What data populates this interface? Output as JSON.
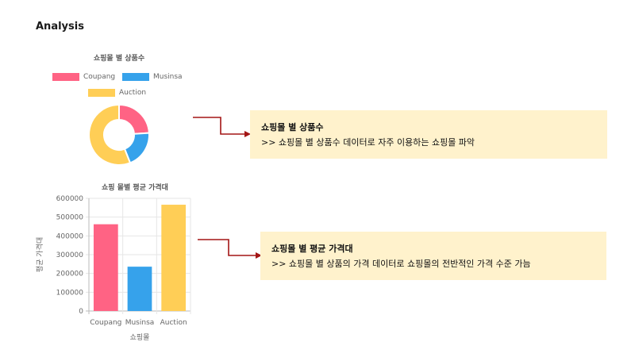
{
  "page": {
    "title": "Analysis"
  },
  "colors": {
    "coupang": "#ff6384",
    "musinsa": "#36a2eb",
    "auction": "#ffce56",
    "arrow": "#a31515",
    "note_bg": "#fff2cc"
  },
  "chart_data": [
    {
      "type": "pie",
      "variant": "doughnut",
      "title": "쇼핑몰 별 상품수",
      "labels": [
        "Coupang",
        "Musinsa",
        "Auction"
      ],
      "values": [
        24,
        20,
        56
      ],
      "legend": "top"
    },
    {
      "type": "bar",
      "title": "쇼핑 몰별 평균 가격대",
      "categories": [
        "Coupang",
        "Musinsa",
        "Auction"
      ],
      "values": [
        462000,
        236000,
        566000
      ],
      "xlabel": "쇼핑몰",
      "ylabel": "평균 가격대",
      "ylim": [
        0,
        600000
      ],
      "yticks": [
        "0",
        "100000",
        "200000",
        "300000",
        "400000",
        "500000",
        "600000"
      ],
      "grid": true,
      "legend": "none"
    }
  ],
  "notes": [
    {
      "heading": "쇼핑몰 별 상품수",
      "text": ">> 쇼핑몰 별 상품수 데이터로 자주 이용하는 쇼핑몰 파악"
    },
    {
      "heading": "쇼핑몰 별 평균 가격대",
      "text": ">> 쇼핑몰 별 상품의 가격 데이터로 쇼핑몰의 전반적인 가격 수준 가늠"
    }
  ]
}
